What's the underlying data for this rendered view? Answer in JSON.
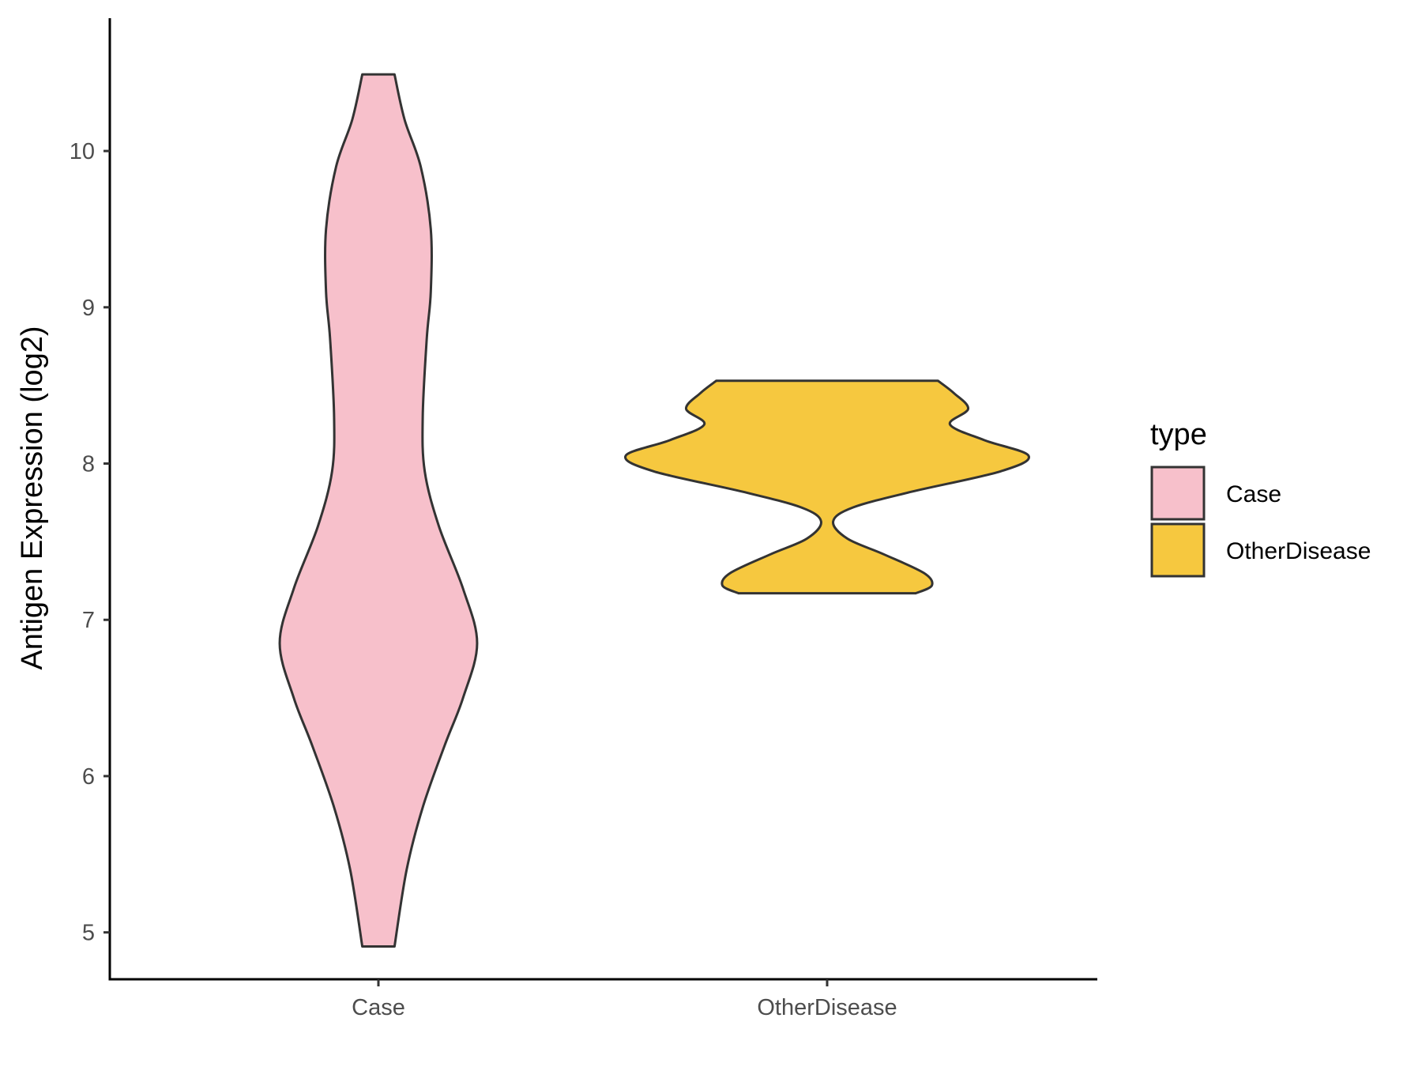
{
  "chart_data": {
    "type": "violin",
    "categories": [
      "Case",
      "OtherDisease"
    ],
    "xlabel": "",
    "ylabel": "Antigen Expression (log2)",
    "ylim": [
      4.7,
      10.85
    ],
    "yticks": [
      5,
      6,
      7,
      8,
      9,
      10
    ],
    "grid": false,
    "legend": {
      "title": "type",
      "position": "right",
      "entries": [
        {
          "label": "Case",
          "color": "#F7C0CB"
        },
        {
          "label": "OtherDisease",
          "color": "#F6C83F"
        }
      ]
    },
    "series": [
      {
        "name": "Case",
        "color": "#F7C0CB",
        "min": 4.91,
        "max": 10.49,
        "density": [
          [
            4.91,
            0.08
          ],
          [
            5.4,
            0.14
          ],
          [
            5.8,
            0.22
          ],
          [
            6.2,
            0.33
          ],
          [
            6.5,
            0.42
          ],
          [
            6.85,
            0.49
          ],
          [
            7.2,
            0.42
          ],
          [
            7.6,
            0.3
          ],
          [
            7.95,
            0.23
          ],
          [
            8.3,
            0.22
          ],
          [
            8.8,
            0.24
          ],
          [
            9.1,
            0.26
          ],
          [
            9.5,
            0.26
          ],
          [
            9.9,
            0.21
          ],
          [
            10.2,
            0.13
          ],
          [
            10.49,
            0.08
          ]
        ]
      },
      {
        "name": "OtherDisease",
        "color": "#F6C83F",
        "min": 7.17,
        "max": 8.53,
        "density": [
          [
            7.17,
            0.44
          ],
          [
            7.22,
            0.52
          ],
          [
            7.3,
            0.48
          ],
          [
            7.42,
            0.28
          ],
          [
            7.52,
            0.1
          ],
          [
            7.63,
            0.03
          ],
          [
            7.72,
            0.13
          ],
          [
            7.82,
            0.42
          ],
          [
            7.95,
            0.86
          ],
          [
            8.05,
            1.0
          ],
          [
            8.15,
            0.78
          ],
          [
            8.25,
            0.61
          ],
          [
            8.35,
            0.7
          ],
          [
            8.45,
            0.63
          ],
          [
            8.53,
            0.55
          ]
        ]
      }
    ]
  }
}
